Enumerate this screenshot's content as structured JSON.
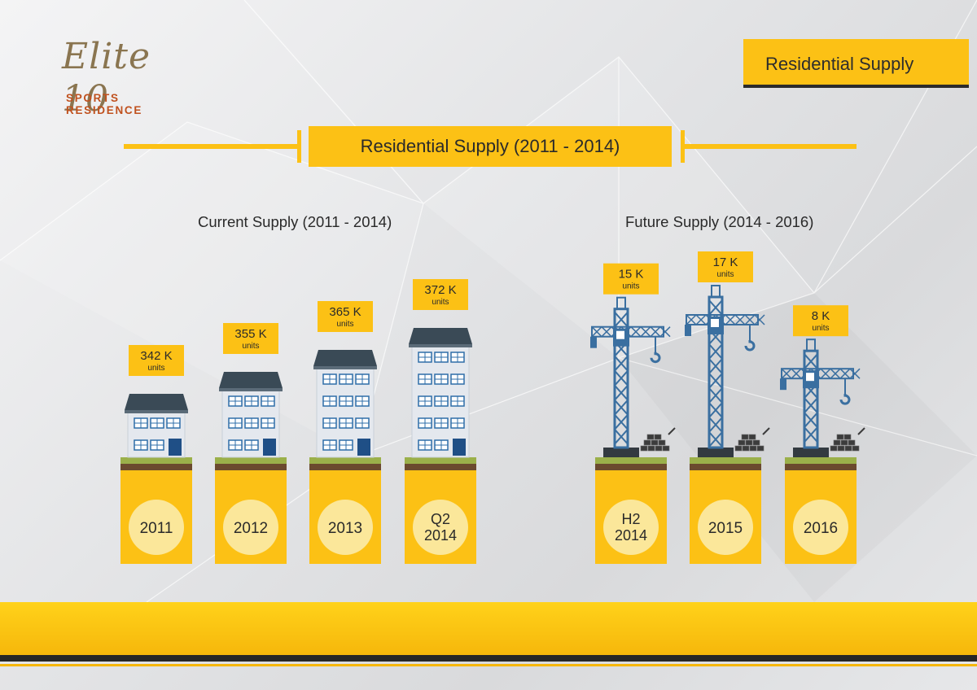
{
  "brand": {
    "logo_script": "Elite 10",
    "logo_sub": "SPORTS RESIDENCE",
    "section_tag": "Residential Supply"
  },
  "header": {
    "title": "Residential Supply (2011 - 2014)"
  },
  "colors": {
    "accent": "#fcc115",
    "dark": "#2b2b2b",
    "building_wall": "#e4e8ee",
    "building_roof": "#3a4a56",
    "window": "#2e6ea8",
    "crane": "#3a6fa0",
    "grass": "#9bb04a",
    "soil": "#6b4a2e",
    "year_circle": "#fbe79a"
  },
  "chart_data": [
    {
      "type": "bar",
      "title": "Current Supply (2011 - 2014)",
      "categories": [
        "2011",
        "2012",
        "2013",
        "Q2 2014"
      ],
      "values": [
        342,
        355,
        365,
        372
      ],
      "value_labels": [
        "342 K",
        "355 K",
        "365 K",
        "372 K"
      ],
      "unit_label": "units",
      "unit": "thousand units",
      "icon": "building"
    },
    {
      "type": "bar",
      "title": "Future Supply (2014 - 2016)",
      "categories": [
        "H2 2014",
        "2015",
        "2016"
      ],
      "values": [
        15,
        17,
        8
      ],
      "value_labels": [
        "15 K",
        "17 K",
        "8 K"
      ],
      "unit_label": "units",
      "unit": "thousand units",
      "icon": "crane"
    }
  ]
}
